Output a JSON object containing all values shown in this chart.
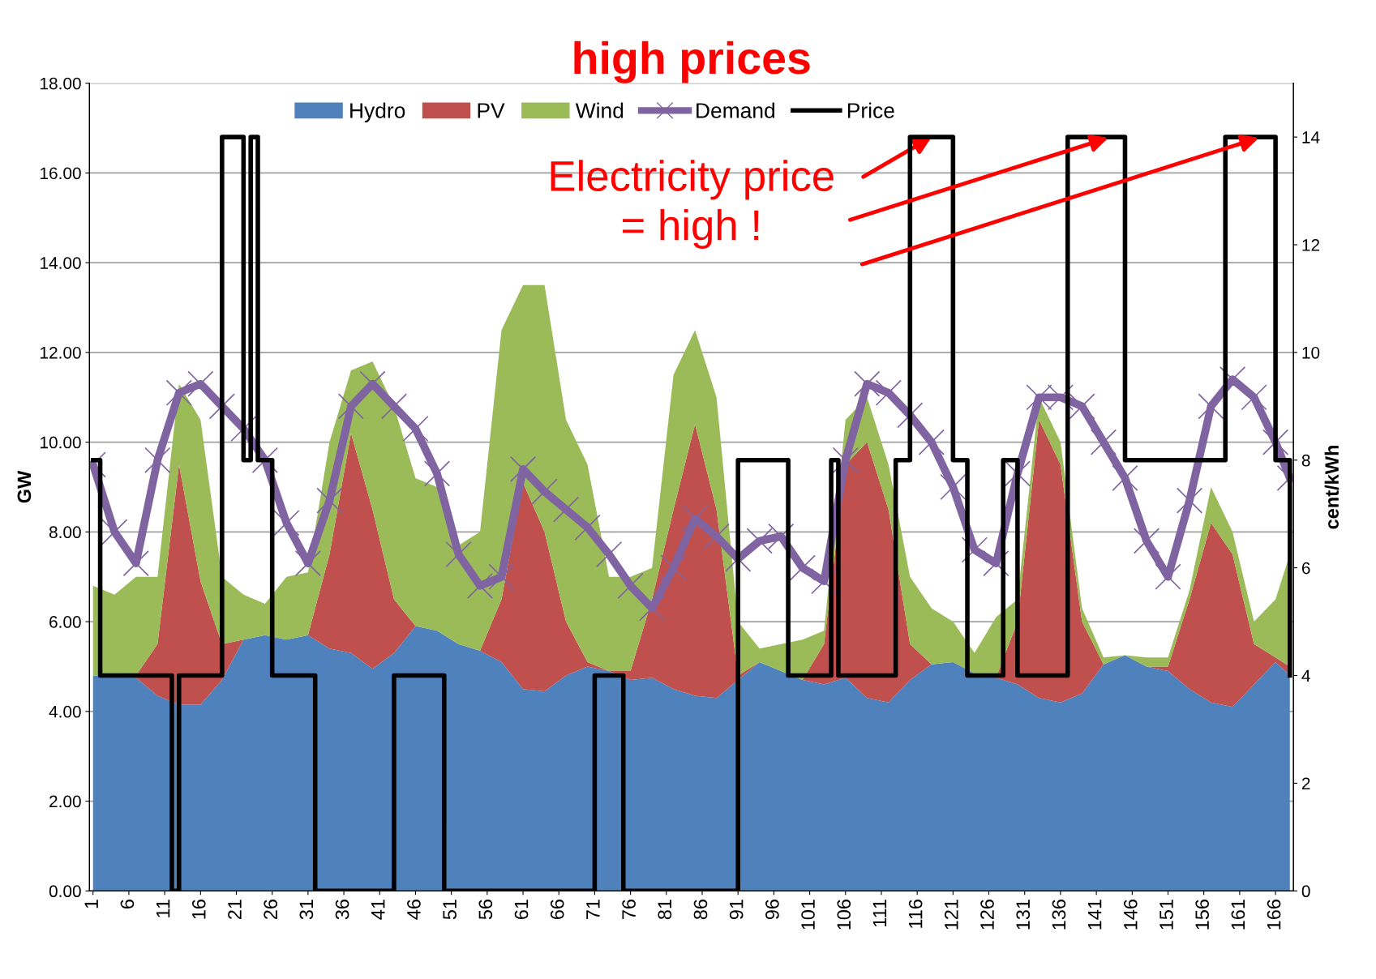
{
  "chart_data": {
    "type": "area",
    "stacked": true,
    "title": "high prices",
    "ylabel": "GW",
    "y2label": "cent/kWh",
    "x": [
      1,
      4,
      7,
      10,
      13,
      16,
      19,
      22,
      25,
      28,
      31,
      34,
      37,
      40,
      43,
      46,
      49,
      52,
      55,
      58,
      61,
      64,
      67,
      70,
      73,
      76,
      79,
      82,
      85,
      88,
      91,
      94,
      97,
      100,
      103,
      106,
      109,
      112,
      115,
      118,
      121,
      124,
      127,
      130,
      133,
      136,
      139,
      142,
      145,
      148,
      151,
      154,
      157,
      160,
      163,
      166,
      168
    ],
    "series": [
      {
        "name": "Hydro",
        "color": "#4f81bd",
        "values": [
          4.8,
          4.8,
          4.75,
          4.35,
          4.15,
          4.15,
          4.7,
          5.6,
          5.7,
          5.6,
          5.7,
          5.4,
          5.3,
          4.95,
          5.3,
          5.9,
          5.8,
          5.5,
          5.35,
          5.1,
          4.5,
          4.45,
          4.8,
          5.0,
          4.9,
          4.7,
          4.75,
          4.5,
          4.35,
          4.3,
          4.7,
          5.1,
          4.9,
          4.7,
          4.6,
          4.75,
          4.3,
          4.2,
          4.7,
          5.05,
          5.1,
          4.85,
          4.75,
          4.6,
          4.3,
          4.2,
          4.4,
          5.05,
          5.25,
          5.0,
          4.9,
          4.5,
          4.2,
          4.1,
          4.6,
          5.1,
          4.8
        ]
      },
      {
        "name": "PV",
        "color": "#c0504d",
        "values": [
          0,
          0,
          0.05,
          1.15,
          5.35,
          2.75,
          0.8,
          0,
          0,
          0,
          0,
          2.1,
          4.9,
          3.55,
          1.2,
          0,
          0,
          0,
          0,
          1.4,
          4.6,
          3.55,
          1.2,
          0.1,
          0,
          0.2,
          1.75,
          4.0,
          6.05,
          4.2,
          0.1,
          0,
          0,
          0,
          0.9,
          4.75,
          5.7,
          4.3,
          0.8,
          0,
          0,
          0,
          0,
          1.4,
          6.2,
          5.3,
          1.6,
          0,
          0,
          0,
          0.1,
          2.0,
          4.0,
          3.4,
          0.9,
          0.1,
          0.2
        ]
      },
      {
        "name": "Wind",
        "color": "#9bbb59",
        "values": [
          2.0,
          1.8,
          2.2,
          1.5,
          1.8,
          3.6,
          1.5,
          1.0,
          0.7,
          1.4,
          1.4,
          2.5,
          1.4,
          3.3,
          4.3,
          3.3,
          3.2,
          2.2,
          2.65,
          6.0,
          4.4,
          5.5,
          4.5,
          4.4,
          2.1,
          2.1,
          0.7,
          3.0,
          2.1,
          2.5,
          1.2,
          0.3,
          0.6,
          0.9,
          0.3,
          1.0,
          1.0,
          1.0,
          1.5,
          1.25,
          0.9,
          0.45,
          1.35,
          0.5,
          0.5,
          0.5,
          0.3,
          0.15,
          0,
          0.2,
          0.2,
          0.2,
          0.8,
          0.5,
          0.5,
          1.3,
          2.5
        ]
      },
      {
        "name": "Demand",
        "type": "line",
        "color": "#8064a2",
        "marker": "cross",
        "x": [
          1,
          4,
          7,
          10,
          13,
          16,
          19,
          22,
          25,
          28,
          31,
          34,
          37,
          40,
          43,
          46,
          49,
          52,
          55,
          58,
          61,
          64,
          67,
          70,
          73,
          76,
          79,
          82,
          85,
          88,
          91,
          94,
          97,
          100,
          103,
          106,
          109,
          112,
          115,
          118,
          121,
          124,
          127,
          130,
          133,
          136,
          139,
          142,
          145,
          148,
          151,
          154,
          157,
          160,
          163,
          166,
          168
        ],
        "values": [
          9.5,
          8.0,
          7.3,
          9.6,
          11.1,
          11.3,
          10.8,
          10.3,
          9.6,
          8.2,
          7.3,
          8.7,
          10.8,
          11.3,
          10.8,
          10.3,
          9.3,
          7.5,
          6.8,
          7.0,
          9.4,
          8.9,
          8.5,
          8.1,
          7.5,
          6.8,
          6.3,
          7.2,
          8.3,
          7.9,
          7.4,
          7.8,
          7.9,
          7.2,
          6.9,
          9.6,
          11.3,
          11.1,
          10.6,
          10.0,
          9.0,
          7.6,
          7.3,
          9.3,
          11.0,
          11.0,
          10.8,
          10.0,
          9.2,
          7.8,
          7.0,
          8.7,
          10.8,
          11.4,
          11.0,
          10.0,
          9.2
        ]
      },
      {
        "name": "Price",
        "type": "step",
        "axis": "y2",
        "color": "#000000",
        "x": [
          1,
          2,
          12,
          13,
          19,
          22,
          23,
          24,
          26,
          32,
          43,
          50,
          71,
          75,
          91,
          98,
          104,
          105,
          113,
          115,
          121,
          123,
          128,
          130,
          137,
          145,
          159,
          166,
          168
        ],
        "values": [
          8,
          4,
          0,
          4,
          14,
          8,
          14,
          8,
          4,
          0,
          4,
          0,
          4,
          0,
          8,
          4,
          8,
          4,
          8,
          14,
          8,
          4,
          8,
          4,
          14,
          8,
          14,
          8,
          4
        ]
      }
    ],
    "xlim": [
      0.5,
      168.5
    ],
    "xticks": [
      1,
      6,
      11,
      16,
      21,
      26,
      31,
      36,
      41,
      46,
      51,
      56,
      61,
      66,
      71,
      76,
      81,
      86,
      91,
      96,
      101,
      106,
      111,
      116,
      121,
      126,
      131,
      136,
      141,
      146,
      151,
      156,
      161,
      166
    ],
    "ylim": [
      0,
      18
    ],
    "yticks": [
      {
        "value": 0,
        "label": "0.00"
      },
      {
        "value": 2,
        "label": "2.00"
      },
      {
        "value": 4,
        "label": "4.00"
      },
      {
        "value": 6,
        "label": "6.00"
      },
      {
        "value": 8,
        "label": "8.00"
      },
      {
        "value": 10,
        "label": "10.00"
      },
      {
        "value": 12,
        "label": "12.00"
      },
      {
        "value": 14,
        "label": "14.00"
      },
      {
        "value": 16,
        "label": "16.00"
      },
      {
        "value": 18,
        "label": "18.00"
      }
    ],
    "y2lim": [
      0,
      15
    ],
    "y2ticks": [
      0,
      2,
      4,
      6,
      8,
      10,
      12,
      14
    ],
    "grid": "y",
    "legend": "top",
    "annotations": [
      {
        "text": "Electricity price\n= high !",
        "x": 118,
        "y": 16.8
      }
    ]
  }
}
